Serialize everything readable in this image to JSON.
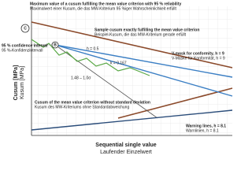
{
  "annotations": {
    "max_value": {
      "en": "Maximum value of a cusum fulfilling the mean value criterion with 95 % reliability",
      "de": "Maximalwert einer Kusum, die das MW-Kriterium 95 %iger Wahrscheinlichkeit erfüllt"
    },
    "confidence": {
      "en": "95 % confidence interval",
      "de": "95 %-Konfidenzintervall"
    },
    "sample": {
      "en": "Sample cusum exactly fulfilling the mean value criterion",
      "de": "Beispiel-Kusum, die das MW-Kriterium gerade erfüllt"
    },
    "v_mask": {
      "en": "V-mask for conformity, h = 9",
      "de": "V-Maske für Konformität, h = 9"
    },
    "mean_criterion": {
      "en": "Cusum of the mean value criterion without standard deviation",
      "de": "Kusum des MW-Kriteriums ohne Standardabweichung"
    },
    "warning": {
      "en": "Warning lines, h = 8.1",
      "de": "Warnlinien, h = 8.1"
    }
  },
  "labels": {
    "c": "C",
    "b": "B",
    "h": "h = 0.5",
    "k": "k = 0.167",
    "formula": "1.48 – 1.0σ"
  },
  "axes": {
    "y_en": "Cusum [MPa]",
    "y_de": "Kusum [MPa]",
    "x_en": "Sequential single value",
    "x_de": "Laufender Einzelwert"
  }
}
